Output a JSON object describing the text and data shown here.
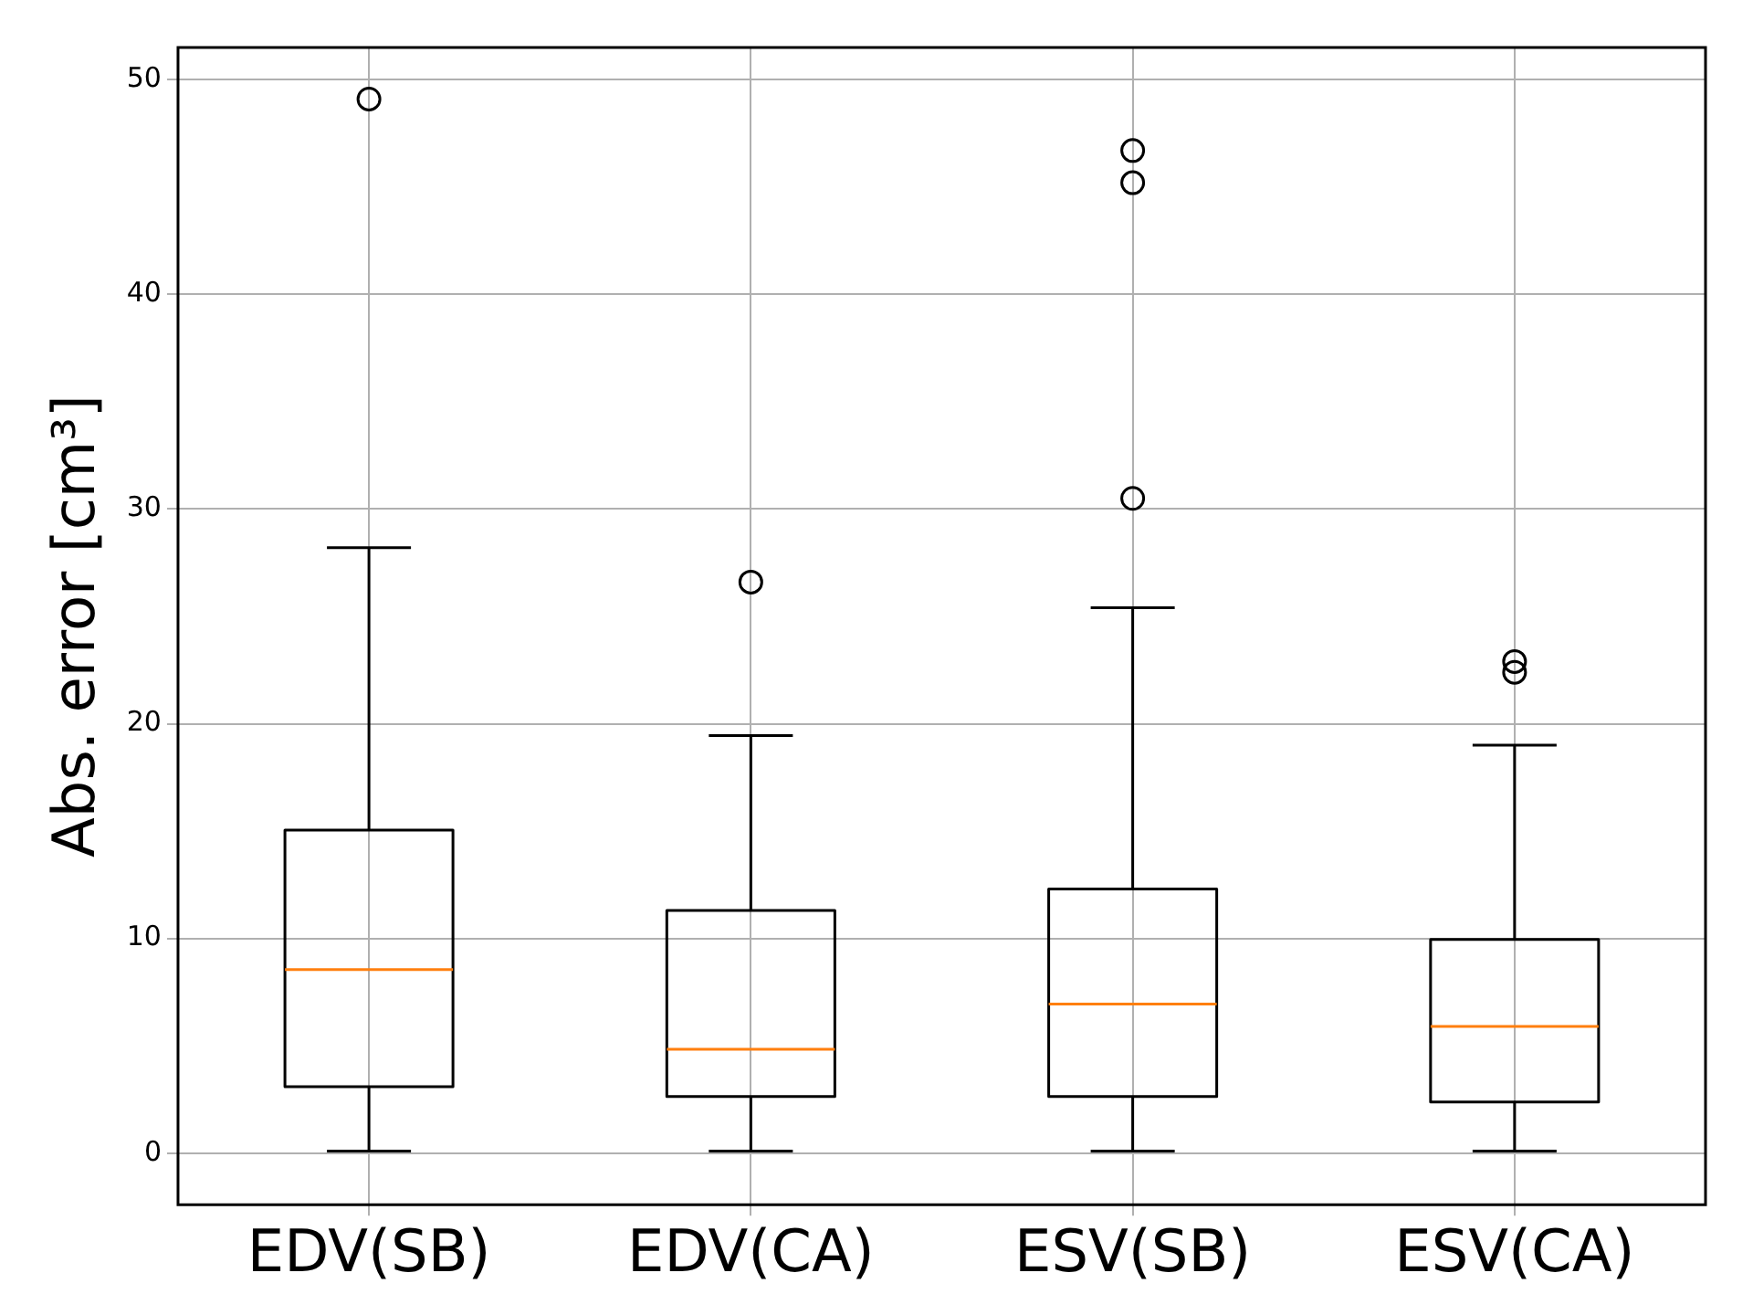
{
  "chart_data": {
    "type": "box",
    "ylabel": "Abs. error [cm³]",
    "categories": [
      "EDV(SB)",
      "EDV(CA)",
      "ESV(SB)",
      "ESV(CA)"
    ],
    "boxes": [
      {
        "low": 0.1,
        "q1": 3.1,
        "median": 8.55,
        "q3": 15.05,
        "high": 28.2,
        "outliers": [
          49.1
        ]
      },
      {
        "low": 0.1,
        "q1": 2.64,
        "median": 4.84,
        "q3": 11.3,
        "high": 19.45,
        "outliers": [
          26.6
        ]
      },
      {
        "low": 0.1,
        "q1": 2.64,
        "median": 6.95,
        "q3": 12.3,
        "high": 25.4,
        "outliers": [
          46.7,
          45.2,
          30.5
        ]
      },
      {
        "low": 0.1,
        "q1": 2.38,
        "median": 5.9,
        "q3": 9.95,
        "high": 19.0,
        "outliers": [
          22.9,
          22.4
        ]
      }
    ],
    "color": "#000000",
    "ylim": [
      -2.4,
      51.5
    ],
    "yticks": [
      0,
      10,
      20,
      30,
      40,
      50
    ],
    "grid": true,
    "marker": "circle"
  }
}
